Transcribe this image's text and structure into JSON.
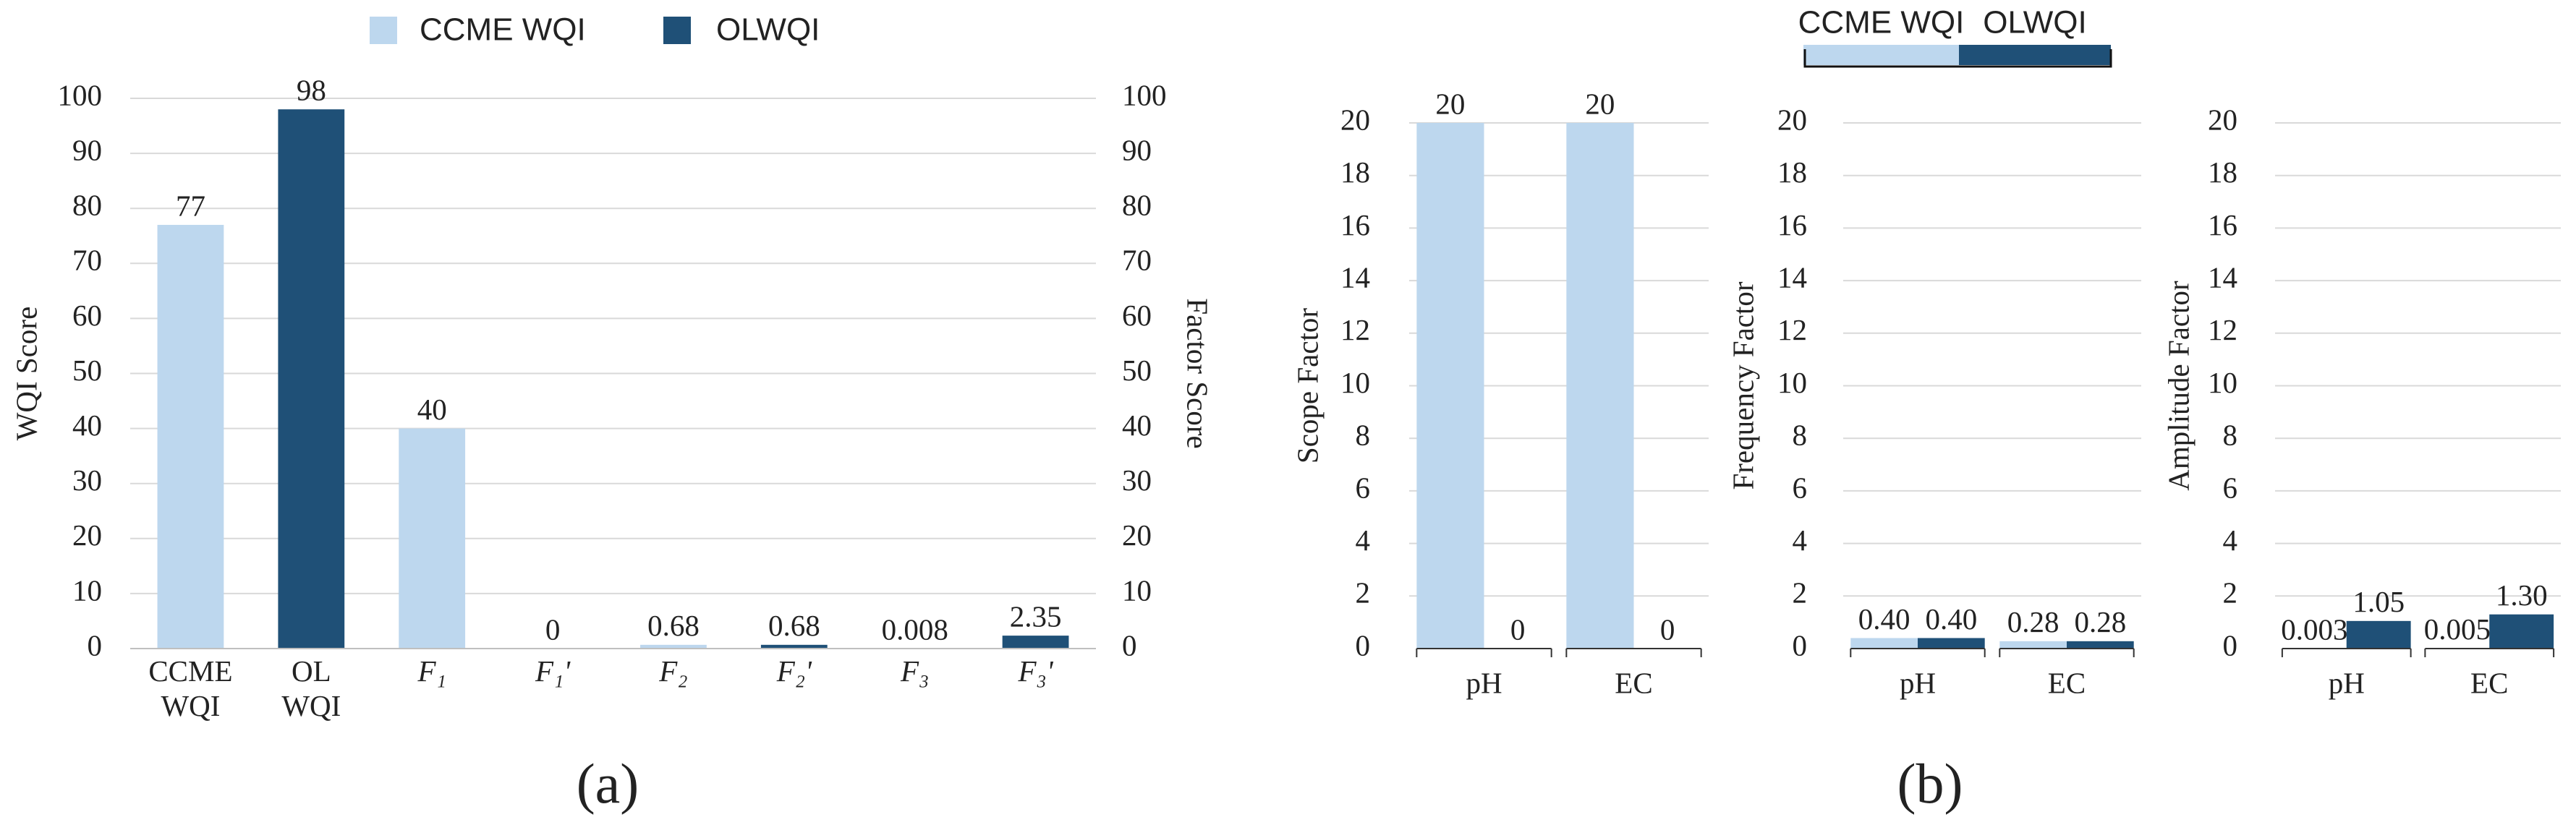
{
  "chart_data": [
    {
      "type": "bar",
      "categories": [
        [
          "CCME",
          "WQI"
        ],
        [
          "OL",
          "WQI"
        ],
        [
          "F₁"
        ],
        [
          "F₁'"
        ],
        [
          "F₂"
        ],
        [
          "F₂'"
        ],
        [
          "F₃"
        ],
        [
          "F₃'"
        ]
      ],
      "series": [
        {
          "name": "CCME WQI",
          "color": "#bdd7ee",
          "values": [
            77,
            null,
            40,
            null,
            0.68,
            null,
            0.008,
            null
          ]
        },
        {
          "name": "OLWQI",
          "color": "#1f5077",
          "values": [
            null,
            98,
            null,
            0,
            null,
            0.68,
            null,
            2.35
          ]
        }
      ],
      "ylabel": "WQI Score",
      "y2label": "Factor Score",
      "ylim": [
        0,
        100
      ],
      "yticks": [
        0,
        10,
        20,
        30,
        40,
        50,
        60,
        70,
        80,
        90,
        100
      ],
      "y2lim": [
        0,
        100
      ],
      "y2ticks": [
        0,
        10,
        20,
        30,
        40,
        50,
        60,
        70,
        80,
        90,
        100
      ],
      "grid": true
    },
    {
      "type": "bar",
      "categories": [
        "pH",
        "EC"
      ],
      "series": [
        {
          "name": "CCME WQI",
          "color": "#bdd7ee",
          "values": [
            20,
            20
          ]
        },
        {
          "name": "OLWQI",
          "color": "#1f5077",
          "values": [
            0,
            0
          ]
        }
      ],
      "ylabel": "Scope Factor",
      "ylim": [
        0,
        20
      ],
      "yticks": [
        0,
        2,
        4,
        6,
        8,
        10,
        12,
        14,
        16,
        18,
        20
      ],
      "grid": true
    },
    {
      "type": "bar",
      "categories": [
        "pH",
        "EC"
      ],
      "series": [
        {
          "name": "CCME WQI",
          "color": "#bdd7ee",
          "values": [
            0.4,
            0.28
          ],
          "value_labels": [
            "0.40",
            "0.28"
          ]
        },
        {
          "name": "OLWQI",
          "color": "#1f5077",
          "values": [
            0.4,
            0.28
          ],
          "value_labels": [
            "0.40",
            "0.28"
          ]
        }
      ],
      "ylabel": "Frequency Factor",
      "ylim": [
        0,
        20
      ],
      "yticks": [
        0,
        2,
        4,
        6,
        8,
        10,
        12,
        14,
        16,
        18,
        20
      ],
      "grid": true
    },
    {
      "type": "bar",
      "categories": [
        "pH",
        "EC"
      ],
      "series": [
        {
          "name": "CCME WQI",
          "color": "#bdd7ee",
          "values": [
            0.003,
            0.005
          ]
        },
        {
          "name": "OLWQI",
          "color": "#1f5077",
          "values": [
            1.05,
            1.3
          ],
          "value_labels": [
            "1.05",
            "1.30"
          ]
        }
      ],
      "ylabel": "Amplitude Factor",
      "ylim": [
        0,
        20
      ],
      "yticks": [
        0,
        2,
        4,
        6,
        8,
        10,
        12,
        14,
        16,
        18,
        20
      ],
      "grid": true
    }
  ],
  "captions": [
    "(a)",
    "(b)"
  ]
}
